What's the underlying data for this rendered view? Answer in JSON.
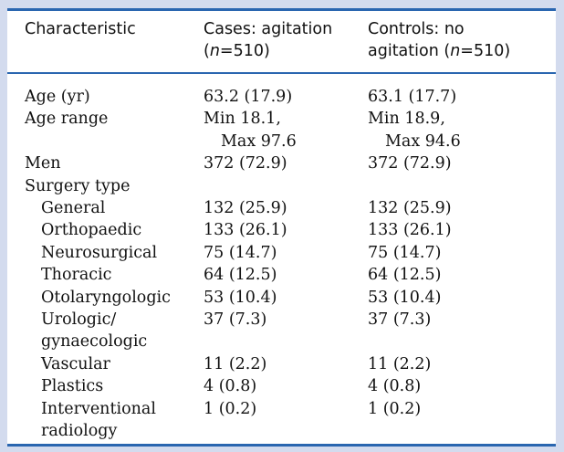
{
  "header": {
    "col1": "Characteristic",
    "col2_line1": "Cases: agitation",
    "col2_line2_pre": "(",
    "col2_n": "n",
    "col2_line2_post": "=510)",
    "col3_line1": "Controls: no",
    "col3_line2_pre": "agitation (",
    "col3_n": "n",
    "col3_line2_post": "=510)"
  },
  "rows": [
    {
      "label": "Age (yr)",
      "cases": "63.2 (17.9)",
      "controls": "63.1 (17.7)"
    },
    {
      "label": "Age range",
      "cases": "Min 18.1,",
      "cases2": "Max 97.6",
      "controls": "Min 18.9,",
      "controls2": "Max 94.6"
    },
    {
      "label": "Men",
      "cases": "372 (72.9)",
      "controls": "372 (72.9)"
    },
    {
      "label": "Surgery type",
      "cases": "",
      "controls": ""
    },
    {
      "label": "General",
      "cases": "132 (25.9)",
      "controls": "132 (25.9)"
    },
    {
      "label": "Orthopaedic",
      "cases": "133 (26.1)",
      "controls": "133 (26.1)"
    },
    {
      "label": "Neurosurgical",
      "cases": "75 (14.7)",
      "controls": "75 (14.7)"
    },
    {
      "label": "Thoracic",
      "cases": "64 (12.5)",
      "controls": "64 (12.5)"
    },
    {
      "label": "Otolaryngologic",
      "cases": "53 (10.4)",
      "controls": "53 (10.4)"
    },
    {
      "label": "Urologic/",
      "label2": "gynaecologic",
      "cases": "37 (7.3)",
      "controls": "37 (7.3)"
    },
    {
      "label": "Vascular",
      "cases": "11 (2.2)",
      "controls": "11 (2.2)"
    },
    {
      "label": "Plastics",
      "cases": "4 (0.8)",
      "controls": "4 (0.8)"
    },
    {
      "label": "Interventional",
      "label2": "radiology",
      "cases": "1 (0.2)",
      "controls": "1 (0.2)"
    }
  ]
}
